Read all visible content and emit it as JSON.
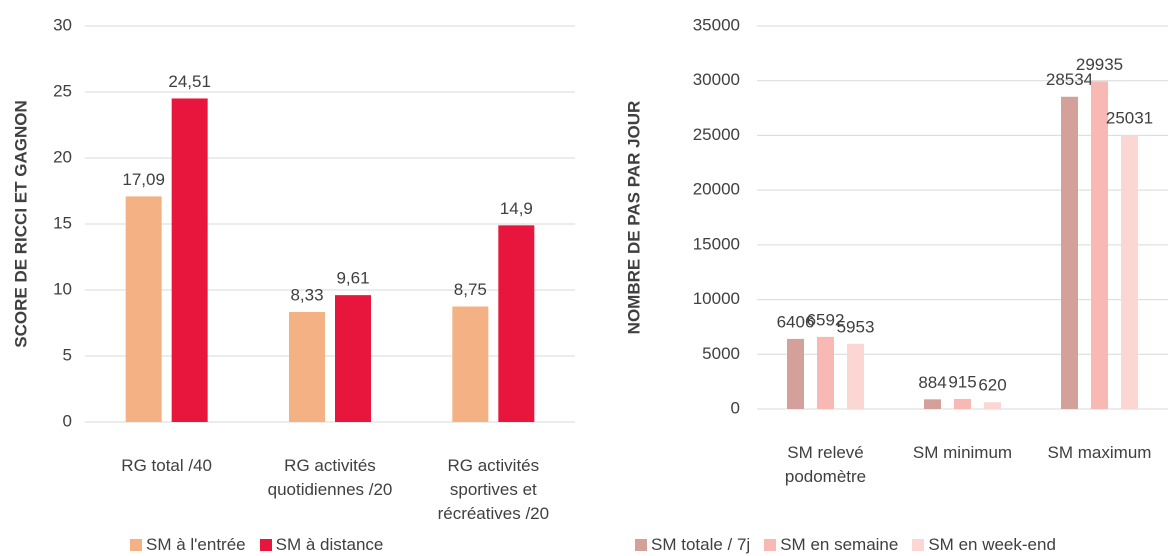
{
  "chart_data": [
    {
      "type": "bar",
      "y_label": "SCORE DE RICCI ET GAGNON",
      "categories": [
        "RG total /40",
        "RG activités quotidiennes /20",
        "RG activités sportives et récréatives /20"
      ],
      "series": [
        {
          "name": "SM à l'entrée",
          "color": "#f4b183",
          "values": [
            17.09,
            8.33,
            8.75
          ],
          "value_labels": [
            "17,09",
            "8,33",
            "8,75"
          ]
        },
        {
          "name": "SM à distance",
          "color": "#e8163c",
          "values": [
            24.51,
            9.61,
            14.9
          ],
          "value_labels": [
            "24,51",
            "9,61",
            "14,9"
          ]
        }
      ],
      "ylim": [
        0,
        30
      ],
      "yticks": [
        0,
        5,
        10,
        15,
        20,
        25,
        30
      ],
      "grid": true,
      "legend": "bottom"
    },
    {
      "type": "bar",
      "y_label": "NOMBRE DE PAS PAR JOUR",
      "categories": [
        "SM relevé podomètre",
        "SM minimum",
        "SM maximum"
      ],
      "series": [
        {
          "name": "SM totale / 7j",
          "color": "#d4a09a",
          "values": [
            6406,
            884,
            28534
          ]
        },
        {
          "name": "SM en semaine",
          "color": "#f8b9b5",
          "values": [
            6592,
            915,
            29935
          ]
        },
        {
          "name": "SM en week-end",
          "color": "#fbd6d3",
          "values": [
            5953,
            620,
            25031
          ]
        }
      ],
      "ylim": [
        0,
        35000
      ],
      "yticks": [
        0,
        5000,
        10000,
        15000,
        20000,
        25000,
        30000,
        35000
      ],
      "grid": true,
      "legend": "bottom"
    }
  ]
}
